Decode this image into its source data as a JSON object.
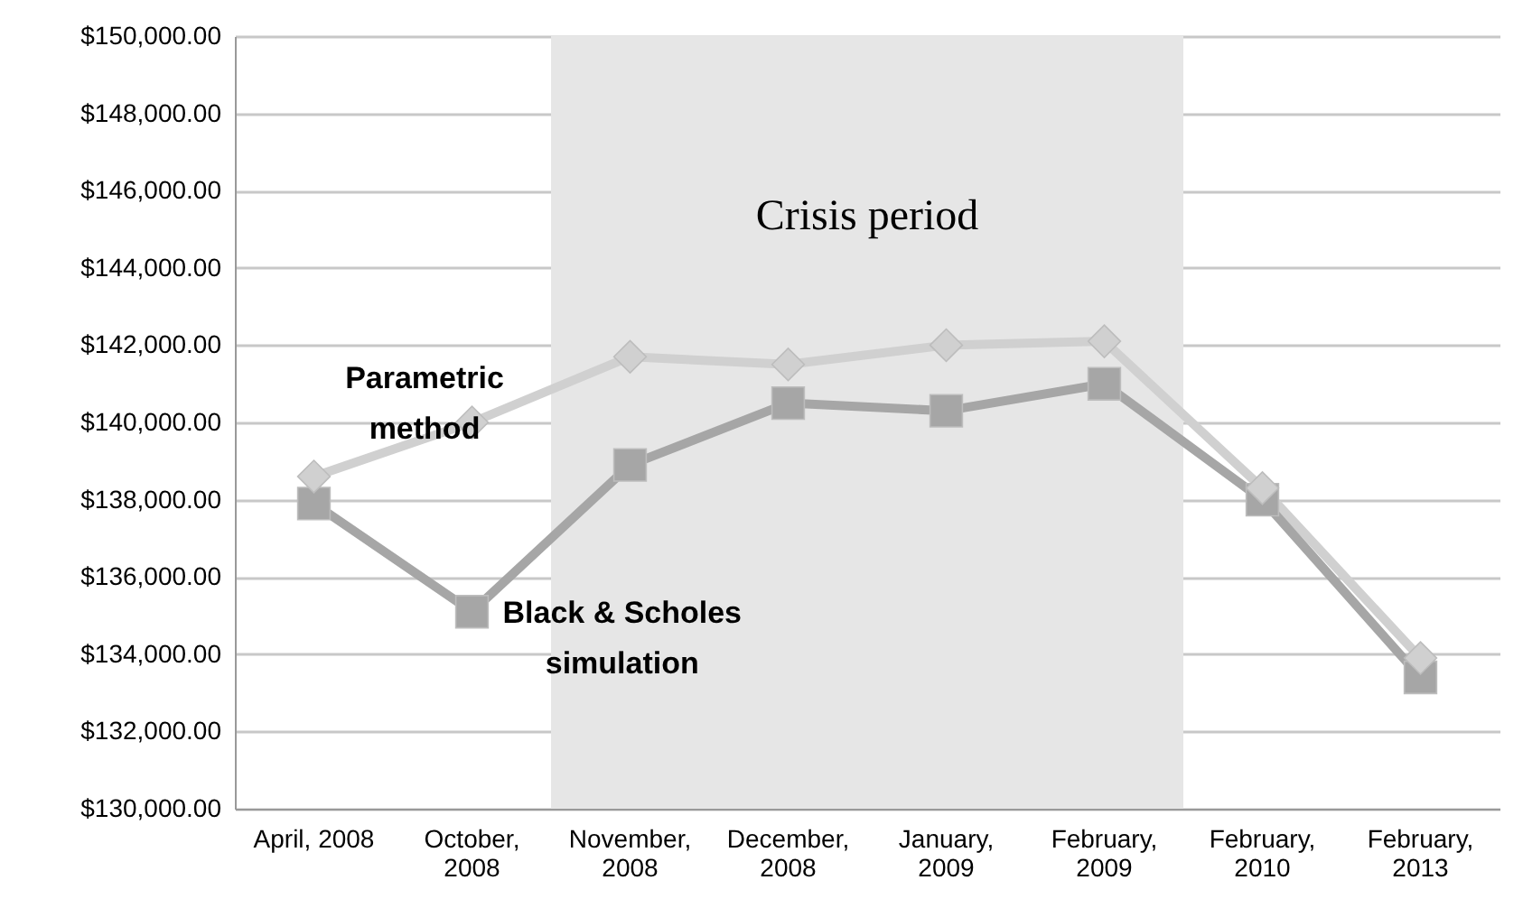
{
  "chart_data": {
    "type": "line",
    "categories": [
      "April, 2008",
      "October, 2008",
      "November, 2008",
      "December, 2008",
      "January, 2009",
      "February, 2009",
      "February, 2010",
      "February, 2013"
    ],
    "series": [
      {
        "name": "Parametric method",
        "color": "#d0d0d0",
        "marker": "diamond",
        "values": [
          138600,
          140000,
          141700,
          141500,
          142000,
          142100,
          138300,
          133900
        ]
      },
      {
        "name": "Black & Scholes simulation",
        "color": "#a6a6a6",
        "marker": "square",
        "values": [
          137900,
          135100,
          138900,
          140500,
          140300,
          141000,
          138000,
          133400
        ]
      }
    ],
    "ylim": [
      130000,
      150000
    ],
    "yticks": [
      {
        "value": 130000,
        "label": "$130,000.00"
      },
      {
        "value": 132000,
        "label": "$132,000.00"
      },
      {
        "value": 134000,
        "label": "$134,000.00"
      },
      {
        "value": 136000,
        "label": "$136,000.00"
      },
      {
        "value": 138000,
        "label": "$138,000.00"
      },
      {
        "value": 140000,
        "label": "$140,000.00"
      },
      {
        "value": 142000,
        "label": "$142,000.00"
      },
      {
        "value": 144000,
        "label": "$144,000.00"
      },
      {
        "value": 146000,
        "label": "$146,000.00"
      },
      {
        "value": 148000,
        "label": "$148,000.00"
      },
      {
        "value": 150000,
        "label": "$150,000.00"
      }
    ],
    "bands": [
      {
        "axis": "x",
        "from": "November, 2008",
        "to": "February, 2009",
        "label": "Crisis period",
        "color": "#e6e6e6"
      }
    ],
    "grid": "y"
  }
}
